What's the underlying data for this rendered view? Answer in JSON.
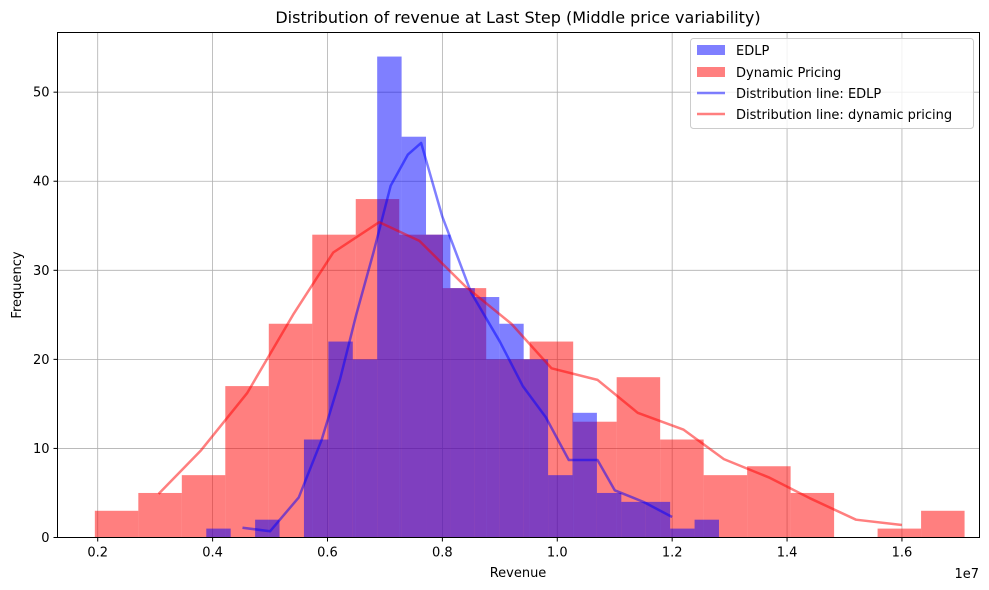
{
  "chart_data": {
    "type": "bar",
    "title": "Distribution of revenue at Last Step (Middle price variability)",
    "xlabel": "Revenue",
    "ylabel": "Frequency",
    "x_offset_label": "1e7",
    "xlim": [
      0.13,
      1.735
    ],
    "ylim": [
      0,
      56.7
    ],
    "grid": true,
    "legend_position": "top-right",
    "xticks": [
      0.2,
      0.4,
      0.6,
      0.8,
      1.0,
      1.2,
      1.4,
      1.6
    ],
    "xtick_labels": [
      "0.2",
      "0.4",
      "0.6",
      "0.8",
      "1.0",
      "1.2",
      "1.4",
      "1.6"
    ],
    "yticks": [
      0,
      10,
      20,
      30,
      40,
      50
    ],
    "ytick_labels": [
      "0",
      "10",
      "20",
      "30",
      "40",
      "50"
    ],
    "colors": {
      "edlp": "#0000ff",
      "dynamic": "#ff0000",
      "overlap": "#bf3f7f"
    },
    "series": [
      {
        "name": "EDLP",
        "kind": "hist",
        "color": "#0000ff",
        "opacity": 0.5,
        "bin_edges": [
          0.389,
          0.4315,
          0.474,
          0.5165,
          0.559,
          0.6015,
          0.644,
          0.6865,
          0.729,
          0.7715,
          0.814,
          0.8565,
          0.899,
          0.9415,
          0.984,
          1.0265,
          1.069,
          1.1115,
          1.154,
          1.1965,
          1.239,
          1.2815
        ],
        "values": [
          1,
          0,
          2,
          0,
          11,
          22,
          20,
          54,
          45,
          34,
          28,
          27,
          24,
          20,
          7,
          14,
          5,
          4,
          4,
          1,
          2
        ]
      },
      {
        "name": "Dynamic Pricing",
        "kind": "hist",
        "color": "#ff0000",
        "opacity": 0.5,
        "bin_edges": [
          0.195,
          0.2707,
          0.3464,
          0.4221,
          0.4978,
          0.5735,
          0.6492,
          0.7249,
          0.8006,
          0.8763,
          0.952,
          1.0277,
          1.1034,
          1.1791,
          1.2548,
          1.3305,
          1.4062,
          1.4819,
          1.5576,
          1.6333,
          1.709
        ],
        "values": [
          3,
          5,
          7,
          17,
          24,
          34,
          38,
          34,
          28,
          20,
          22,
          13,
          18,
          11,
          7,
          8,
          5,
          0,
          1,
          3
        ]
      },
      {
        "name": "Distribution line: EDLP",
        "kind": "line",
        "color": "#0000ff",
        "opacity": 0.5,
        "x": [
          0.452,
          0.5,
          0.55,
          0.59,
          0.622,
          0.65,
          0.68,
          0.71,
          0.74,
          0.763,
          0.8,
          0.85,
          0.9,
          0.94,
          0.98,
          1.02,
          1.07,
          1.1,
          1.15,
          1.2
        ],
        "y": [
          1.1,
          0.7,
          4.5,
          11,
          17.8,
          25,
          32,
          39.5,
          43,
          44.3,
          36,
          27.5,
          22,
          17,
          13.5,
          8.7,
          8.7,
          5.3,
          4,
          2.3
        ]
      },
      {
        "name": "Distribution line: dynamic pricing",
        "kind": "line",
        "color": "#ff0000",
        "opacity": 0.5,
        "x": [
          0.306,
          0.38,
          0.46,
          0.54,
          0.61,
          0.69,
          0.76,
          0.84,
          0.92,
          0.99,
          1.07,
          1.14,
          1.22,
          1.29,
          1.37,
          1.44,
          1.52,
          1.6
        ],
        "y": [
          4.9,
          9.8,
          16.2,
          25,
          32,
          35.4,
          33.3,
          28.2,
          24,
          19,
          17.7,
          14,
          12.1,
          8.8,
          6.7,
          4.4,
          2,
          1.4
        ]
      }
    ]
  }
}
